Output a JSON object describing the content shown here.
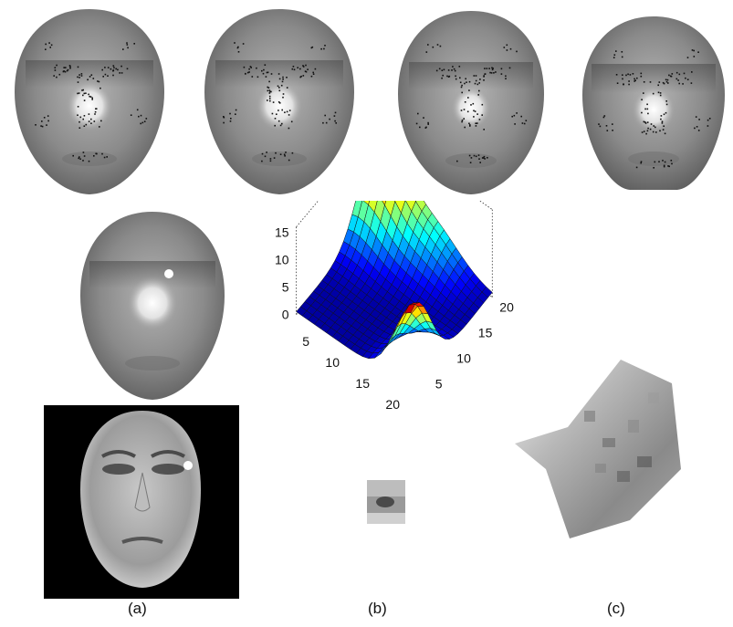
{
  "panel_labels": {
    "a": "(a)",
    "b": "(b)",
    "c": "(c)"
  },
  "icons": {
    "face_models": [
      "face-model-icon",
      "face-model-icon",
      "face-model-icon",
      "face-model-icon"
    ],
    "marker": "white-point-marker"
  },
  "colors": {
    "face_gray": "#8e8e8e",
    "marker": "#ffffff",
    "photo_bg": "#000000"
  },
  "chart_data": {
    "type": "surface",
    "x_ticks": [
      "5",
      "10",
      "15",
      "20"
    ],
    "y_ticks": [
      "5",
      "10",
      "15",
      "20"
    ],
    "z_ticks": [
      "0",
      "5",
      "10",
      "15"
    ],
    "xlim": [
      1,
      20
    ],
    "ylim": [
      1,
      20
    ],
    "zlim": [
      0,
      16
    ],
    "grid": true,
    "colormap": "jet"
  }
}
